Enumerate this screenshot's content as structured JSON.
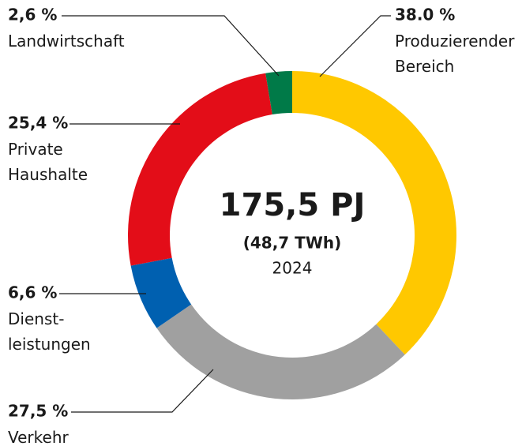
{
  "chart_data": {
    "type": "pie",
    "categories": [
      "Produzierender\nBereich",
      "Verkehr",
      "Dienst-\nleistungen",
      "Private\nHaushalte",
      "Landwirtschaft"
    ],
    "values": [
      38.0,
      27.5,
      6.6,
      25.4,
      2.6
    ],
    "value_labels": [
      "38.0 %",
      "27,5 %",
      "6,6 %",
      "25,4 %",
      "2,6 %"
    ],
    "colors": [
      "#ffc800",
      "#a0a0a0",
      "#0060b0",
      "#e30d18",
      "#007a48"
    ],
    "center_title": "175,5 PJ",
    "center_subtitle": "(48,7 TWh)",
    "center_note": "2024"
  }
}
